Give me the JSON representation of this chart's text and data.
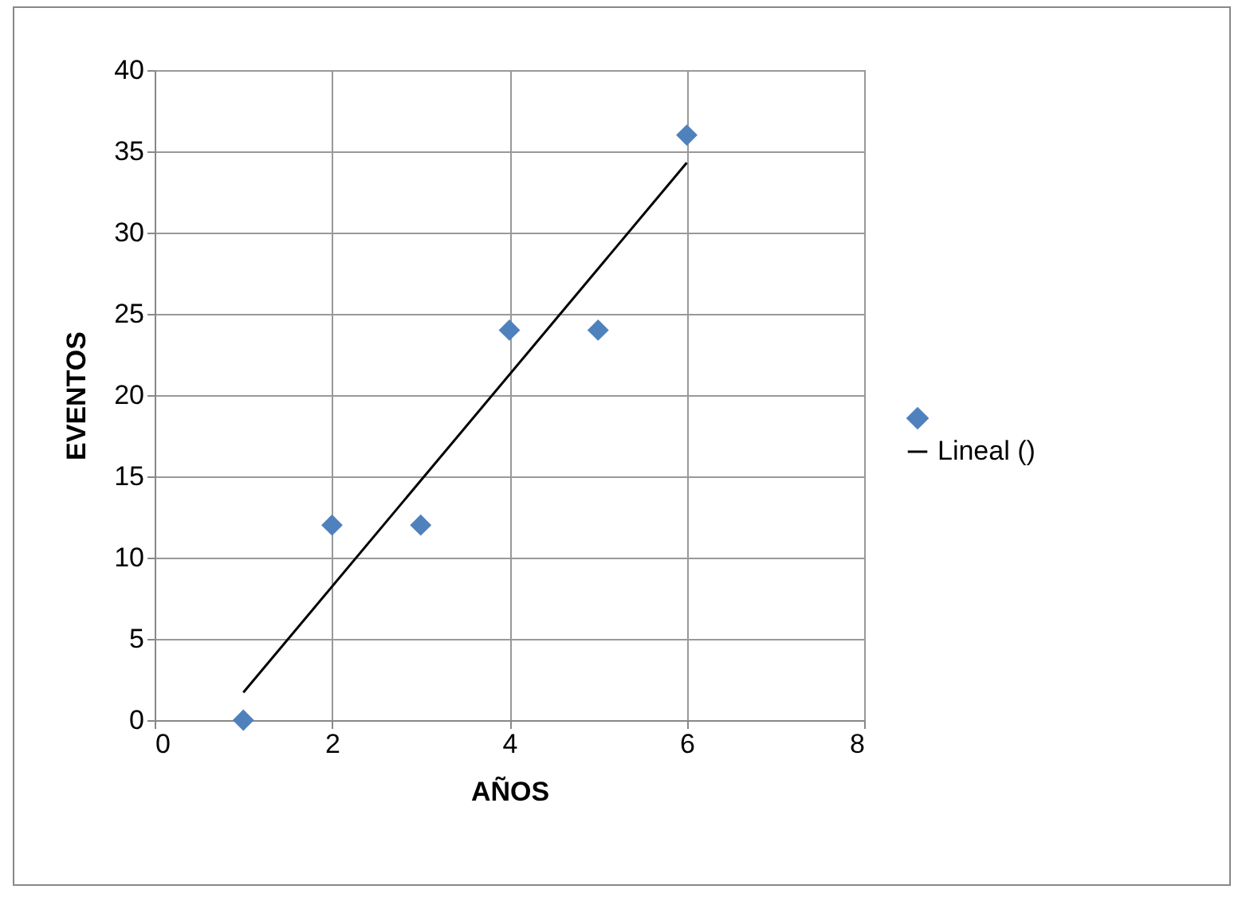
{
  "chart_data": {
    "type": "scatter",
    "xlabel": "AÑOS",
    "ylabel": "EVENTOS",
    "x": [
      1,
      2,
      3,
      4,
      5,
      6
    ],
    "series": [
      {
        "color": "#4f81bd",
        "marker": "diamond",
        "values": [
          0,
          12,
          12,
          24,
          24,
          36
        ]
      },
      {
        "type": "line",
        "name": "Lineal ()",
        "color": "#000000",
        "marker": "none",
        "x": [
          1,
          6
        ],
        "values": [
          1.7,
          34.3
        ]
      }
    ],
    "xlim": [
      0,
      8
    ],
    "ylim": [
      0,
      40
    ],
    "xticks": [
      0,
      2,
      4,
      6,
      8
    ],
    "yticks": [
      0,
      5,
      10,
      15,
      20,
      25,
      30,
      35,
      40
    ],
    "grid": true,
    "legend": "right",
    "line_style": "solid"
  }
}
